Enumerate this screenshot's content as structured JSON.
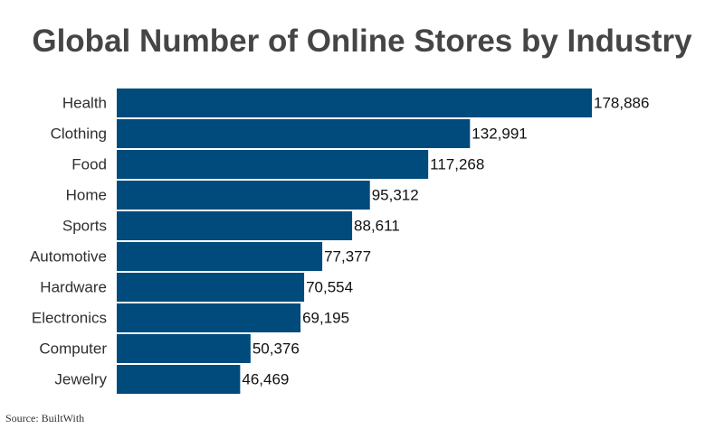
{
  "chart_data": {
    "type": "bar",
    "orientation": "horizontal",
    "title": "Global Number of Online Stores by Industry",
    "categories": [
      "Health",
      "Clothing",
      "Food",
      "Home",
      "Sports",
      "Automotive",
      "Hardware",
      "Electronics",
      "Computer",
      "Jewelry"
    ],
    "values": [
      178886,
      132991,
      117268,
      95312,
      88611,
      77377,
      70554,
      69195,
      50376,
      46469
    ],
    "value_labels": [
      "178,886",
      "132,991",
      "117,268",
      "95,312",
      "88,611",
      "77,377",
      "70,554",
      "69,195",
      "50,376",
      "46,469"
    ],
    "xlabel": "",
    "ylabel": "",
    "grid": false,
    "legend": "none",
    "bar_color": "#004a7c",
    "source": "Source: BuiltWith"
  }
}
